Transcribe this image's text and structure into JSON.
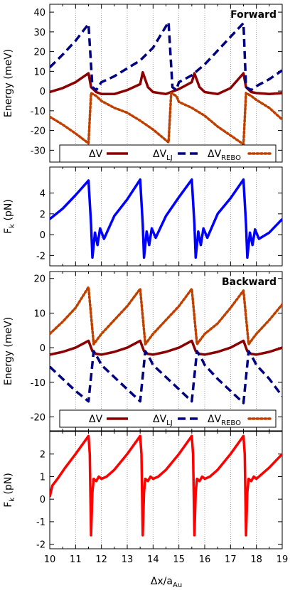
{
  "chart_data": [
    {
      "type": "line",
      "panel": "forward-energy",
      "annotation": "Forward",
      "ylabel": "Energy (meV)",
      "xlim": [
        10,
        19
      ],
      "ylim": [
        -36,
        44
      ],
      "yticks": [
        "40",
        "30",
        "20",
        "10",
        "0",
        "-10",
        "-20",
        "-30"
      ],
      "legend": [
        "ΔV",
        "ΔV",
        "ΔV"
      ],
      "legend_subs": [
        "",
        "LJ",
        "REBO"
      ],
      "legend_position": "bottom",
      "series": [
        {
          "name": "ΔV",
          "color": "#8b0000",
          "style": "solid",
          "x": [
            10.0,
            10.5,
            11.0,
            11.5,
            11.6,
            11.8,
            12.0,
            12.5,
            13.0,
            13.5,
            13.6,
            13.8,
            14.0,
            14.5,
            15.0,
            15.5,
            15.6,
            15.8,
            16.0,
            16.5,
            17.0,
            17.5,
            17.6,
            17.8,
            18.0,
            18.5,
            19.0
          ],
          "values": [
            -0.5,
            1.5,
            4.5,
            9.0,
            2.0,
            -0.5,
            -1.5,
            -1.5,
            0.5,
            3.5,
            9.5,
            2.0,
            -0.5,
            -1.5,
            1.0,
            4.5,
            9.0,
            2.0,
            -0.5,
            -1.5,
            1.5,
            9.0,
            2.0,
            -0.5,
            -1.0,
            -1.5,
            -1.0
          ]
        },
        {
          "name": "ΔV",
          "color": "#000080",
          "style": "dashed",
          "x": [
            10.0,
            10.5,
            11.0,
            11.5,
            11.65,
            11.8,
            12.0,
            12.5,
            13.0,
            13.5,
            14.0,
            14.6,
            14.75,
            14.9,
            15.0,
            15.5,
            16.0,
            16.5,
            17.0,
            17.5,
            17.6,
            17.8,
            18.0,
            18.5,
            19.0
          ],
          "values": [
            12.0,
            18.5,
            25.5,
            34.0,
            2.0,
            0.5,
            4.5,
            7.5,
            11.5,
            15.5,
            22.0,
            35.0,
            2.0,
            0.5,
            4.5,
            8.0,
            13.5,
            20.5,
            27.5,
            34.5,
            2.0,
            0.5,
            2.5,
            6.0,
            10.5
          ]
        },
        {
          "name": "ΔV",
          "color": "#c04000",
          "style": "dotted",
          "x": [
            10.0,
            10.5,
            11.0,
            11.5,
            11.6,
            11.8,
            12.0,
            12.5,
            13.0,
            13.5,
            14.0,
            14.6,
            14.7,
            14.9,
            15.0,
            15.5,
            16.0,
            16.5,
            17.0,
            17.5,
            17.6,
            17.8,
            18.0,
            18.5,
            19.0
          ],
          "values": [
            -13.0,
            -17.0,
            -21.5,
            -26.5,
            -1.0,
            -2.5,
            -5.0,
            -8.5,
            -11.0,
            -15.0,
            -19.5,
            -26.0,
            -1.0,
            -2.5,
            -5.5,
            -8.5,
            -12.5,
            -18.0,
            -22.5,
            -27.0,
            -1.0,
            -2.5,
            -4.5,
            -8.5,
            -14.5
          ]
        }
      ]
    },
    {
      "type": "line",
      "panel": "forward-force",
      "ylabel": "F",
      "ylabel_sub": "k",
      "ylabel_unit": " (pN)",
      "xlim": [
        10,
        19
      ],
      "ylim": [
        -3,
        6.5
      ],
      "yticks": [
        "4",
        "2",
        "0",
        "-2"
      ],
      "series": [
        {
          "name": "",
          "color": "#0000ff",
          "style": "solid",
          "x": [
            10.0,
            10.5,
            11.0,
            11.5,
            11.6,
            11.65,
            11.75,
            11.85,
            11.95,
            12.1,
            12.5,
            13.0,
            13.5,
            13.6,
            13.65,
            13.75,
            13.85,
            13.95,
            14.1,
            14.5,
            15.0,
            15.5,
            15.6,
            15.65,
            15.75,
            15.85,
            15.95,
            16.1,
            16.5,
            17.0,
            17.5,
            17.6,
            17.65,
            17.75,
            17.85,
            17.95,
            18.1,
            18.5,
            19.0
          ],
          "values": [
            1.5,
            2.5,
            3.8,
            5.2,
            1.0,
            -2.2,
            0.2,
            -1.0,
            0.6,
            -0.4,
            1.8,
            3.4,
            5.3,
            1.0,
            -2.2,
            0.3,
            -1.0,
            0.6,
            -0.3,
            1.8,
            3.6,
            5.3,
            1.0,
            -2.2,
            0.3,
            -1.0,
            0.6,
            -0.3,
            2.0,
            3.5,
            5.3,
            1.0,
            -2.2,
            0.2,
            -1.0,
            0.5,
            -0.4,
            0.2,
            1.5
          ]
        }
      ]
    },
    {
      "type": "line",
      "panel": "backward-energy",
      "annotation": "Backward",
      "ylabel": "Energy (meV)",
      "xlim": [
        10,
        19
      ],
      "ylim": [
        -24,
        22
      ],
      "yticks": [
        "20",
        "10",
        "0",
        "-10",
        "-20"
      ],
      "legend": [
        "ΔV",
        "ΔV",
        "ΔV"
      ],
      "legend_subs": [
        "",
        "LJ",
        "REBO"
      ],
      "legend_position": "bottom",
      "series": [
        {
          "name": "ΔV",
          "color": "#8b0000",
          "style": "solid",
          "x": [
            10.0,
            10.5,
            11.0,
            11.5,
            11.65,
            11.8,
            12.0,
            12.5,
            13.0,
            13.5,
            13.65,
            13.8,
            14.0,
            14.5,
            15.0,
            15.5,
            15.65,
            15.8,
            16.0,
            16.5,
            17.0,
            17.5,
            17.65,
            17.8,
            18.0,
            18.5,
            19.0
          ],
          "values": [
            -2.0,
            -1.2,
            0.0,
            2.0,
            -1.0,
            -1.8,
            -2.0,
            -1.2,
            0.0,
            2.0,
            -1.0,
            -1.8,
            -2.0,
            -1.2,
            0.0,
            2.0,
            -1.0,
            -1.8,
            -2.0,
            -1.2,
            0.0,
            2.0,
            -1.0,
            -1.8,
            -2.0,
            -1.2,
            0.0
          ]
        },
        {
          "name": "ΔV",
          "color": "#000080",
          "style": "dashed",
          "x": [
            10.0,
            10.5,
            11.0,
            11.5,
            11.7,
            11.9,
            12.0,
            12.5,
            13.0,
            13.5,
            13.7,
            13.9,
            14.0,
            14.5,
            15.0,
            15.5,
            15.7,
            15.9,
            16.0,
            16.5,
            17.0,
            17.5,
            17.7,
            17.9,
            18.0,
            18.5,
            19.0
          ],
          "values": [
            -5.5,
            -9.0,
            -12.5,
            -15.5,
            -1.0,
            -3.5,
            -5.0,
            -8.5,
            -12.0,
            -15.5,
            -1.0,
            -3.5,
            -5.0,
            -8.5,
            -12.0,
            -15.5,
            -1.0,
            -3.5,
            -5.0,
            -9.0,
            -12.5,
            -16.0,
            -1.0,
            -3.5,
            -5.0,
            -9.0,
            -14.0
          ]
        },
        {
          "name": "ΔV",
          "color": "#c04000",
          "style": "dotted",
          "x": [
            10.0,
            10.5,
            11.0,
            11.5,
            11.7,
            11.9,
            12.0,
            12.5,
            13.0,
            13.5,
            13.7,
            13.9,
            14.0,
            14.5,
            15.0,
            15.5,
            15.7,
            15.9,
            16.0,
            16.5,
            17.0,
            17.5,
            17.7,
            17.9,
            18.0,
            18.5,
            19.0
          ],
          "values": [
            4.0,
            7.5,
            11.5,
            17.5,
            1.0,
            3.0,
            4.0,
            8.0,
            12.0,
            17.0,
            1.0,
            3.0,
            4.0,
            8.0,
            12.0,
            17.0,
            1.0,
            3.0,
            4.0,
            7.0,
            11.5,
            16.5,
            1.0,
            3.0,
            4.0,
            8.0,
            12.5
          ]
        }
      ]
    },
    {
      "type": "line",
      "panel": "backward-force",
      "ylabel": "F",
      "ylabel_sub": "k",
      "ylabel_unit": " (pN)",
      "xlabel": "Δx/a",
      "xlabel_sub": "Au",
      "xlim": [
        10,
        19
      ],
      "ylim": [
        -2.2,
        3.0
      ],
      "xticks": [
        "10",
        "11",
        "12",
        "13",
        "14",
        "15",
        "16",
        "17",
        "18",
        "19"
      ],
      "yticks": [
        "2",
        "1",
        "0",
        "-1",
        "-2"
      ],
      "series": [
        {
          "name": "",
          "color": "#ff0000",
          "style": "solid",
          "x": [
            10.0,
            10.1,
            10.3,
            10.6,
            11.0,
            11.5,
            11.55,
            11.6,
            11.65,
            11.7,
            11.8,
            11.9,
            12.0,
            12.2,
            12.5,
            13.0,
            13.5,
            13.55,
            13.6,
            13.65,
            13.7,
            13.8,
            13.9,
            14.0,
            14.2,
            14.5,
            15.0,
            15.5,
            15.55,
            15.6,
            15.65,
            15.7,
            15.8,
            15.9,
            16.0,
            16.2,
            16.5,
            17.0,
            17.5,
            17.55,
            17.6,
            17.65,
            17.7,
            17.8,
            17.9,
            18.0,
            18.2,
            18.5,
            19.0
          ],
          "values": [
            0.1,
            0.6,
            0.9,
            1.4,
            2.0,
            2.8,
            2.0,
            -1.6,
            0.3,
            0.9,
            0.8,
            1.0,
            0.9,
            1.0,
            1.3,
            2.0,
            2.8,
            2.0,
            -1.6,
            0.3,
            0.9,
            0.8,
            1.0,
            0.9,
            1.0,
            1.3,
            2.0,
            2.8,
            2.0,
            -1.6,
            0.3,
            0.9,
            0.8,
            1.0,
            0.9,
            1.0,
            1.3,
            2.0,
            2.8,
            2.0,
            -1.6,
            0.3,
            0.9,
            0.8,
            1.0,
            0.9,
            1.1,
            1.4,
            2.0
          ]
        }
      ]
    }
  ]
}
